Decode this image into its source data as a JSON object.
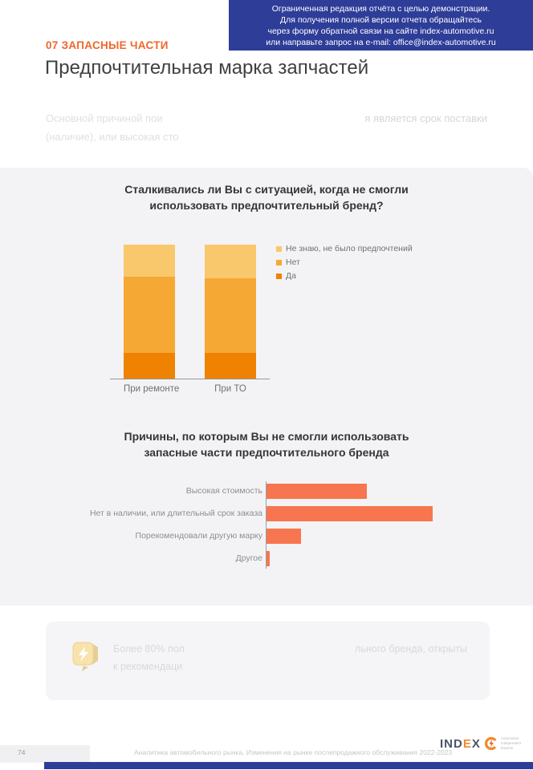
{
  "banner": {
    "lines": [
      "Ограниченная редакция отчёта с целью демонстрации.",
      "Для получения полной версии отчета обращайтесь",
      "через форму обратной связи на сайте index-automotive.ru",
      "или направьте запрос на e-mail: office@index-automotive.ru"
    ],
    "bg_color": "#2e3d98"
  },
  "header": {
    "section": "07 ЗАПАСНЫЕ ЧАСТИ",
    "title": "Предпочтительная марка запчастей",
    "accent_color": "#f0662d"
  },
  "intro": {
    "line1_left": "Основной причиной пои",
    "line1_right": "я является срок поставки",
    "line2": "(наличие), или высокая сто"
  },
  "chart_data": [
    {
      "type": "bar",
      "stacked": true,
      "title": "Сталкивались ли Вы с ситуацией, когда не смогли использовать предпочтительный бренд?",
      "categories": [
        "При ремонте",
        "При ТО"
      ],
      "series": [
        {
          "name": "Да",
          "color": "#ef8200",
          "values": [
            19,
            19
          ]
        },
        {
          "name": "Нет",
          "color": "#f5a833",
          "values": [
            57,
            56
          ]
        },
        {
          "name": "Не знаю, не было предпочтений",
          "color": "#f9c86d",
          "values": [
            24,
            25
          ]
        }
      ],
      "ylim": [
        0,
        100
      ],
      "legend_position": "right",
      "data_labels": false,
      "grid": false
    },
    {
      "type": "bar",
      "orientation": "horizontal",
      "title": "Причины, по которым Вы не смогли использовать запасные части предпочтительного бренда",
      "categories": [
        "Высокая стоимость",
        "Нет в наличии, или длительный срок заказа",
        "Порекомендовали другую марку",
        "Другое"
      ],
      "values": [
        29,
        48,
        10,
        1
      ],
      "color": "#f8764f",
      "xlim": [
        0,
        50
      ],
      "data_labels": false,
      "grid": false
    }
  ],
  "insight": {
    "icon": "speech-bubble-lightning",
    "line1_left": "Более 80% пол",
    "line1_right": "льного бренда, открыты",
    "line2": "к рекомендаци"
  },
  "footer": {
    "page_number": "74",
    "caption": "Аналитика автомобильного рынка. Изменения на рынке послепродажного обслуживания 2022-2023",
    "logo": {
      "part1": "IND",
      "part2": "E",
      "part3": "X",
      "tagline": [
        "Automotive",
        "Independent",
        "Experts"
      ]
    }
  }
}
